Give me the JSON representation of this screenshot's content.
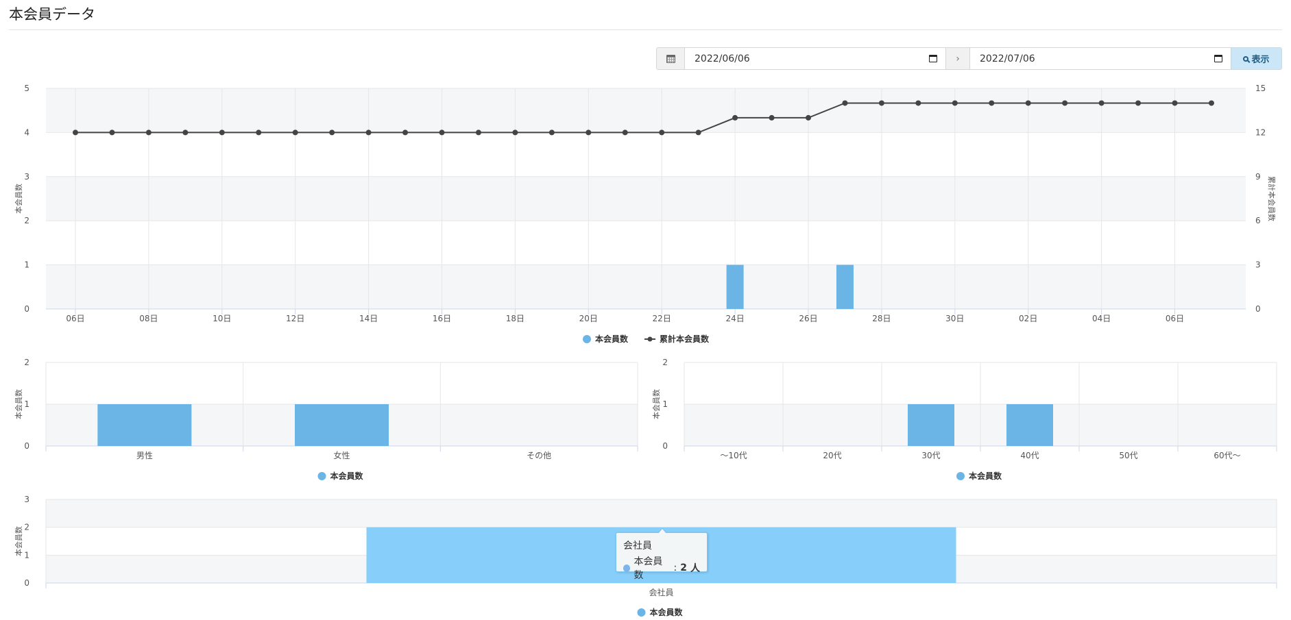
{
  "page": {
    "title": "本会員データ"
  },
  "date_range": {
    "start": "2022/06/06",
    "end": "2022/07/06",
    "separator": "›",
    "show_label": "表示"
  },
  "colors": {
    "bar": "#6ab4e6",
    "bar_light": "#87cefa",
    "line": "#444444",
    "band": "#f5f6f8"
  },
  "chart_data": [
    {
      "type": "bar+line",
      "x": [
        "06日",
        "07日",
        "08日",
        "09日",
        "10日",
        "11日",
        "12日",
        "13日",
        "14日",
        "15日",
        "16日",
        "17日",
        "18日",
        "19日",
        "20日",
        "21日",
        "22日",
        "23日",
        "24日",
        "25日",
        "26日",
        "27日",
        "28日",
        "29日",
        "30日",
        "01日",
        "02日",
        "03日",
        "04日",
        "05日",
        "06日",
        "07日"
      ],
      "x_tick_labels": [
        "06日",
        "08日",
        "10日",
        "12日",
        "14日",
        "16日",
        "18日",
        "20日",
        "22日",
        "24日",
        "26日",
        "28日",
        "30日",
        "02日",
        "04日",
        "06日"
      ],
      "series": [
        {
          "name": "本会員数",
          "type": "bar",
          "axis": "left",
          "values": [
            0,
            0,
            0,
            0,
            0,
            0,
            0,
            0,
            0,
            0,
            0,
            0,
            0,
            0,
            0,
            0,
            0,
            0,
            1,
            0,
            0,
            1,
            0,
            0,
            0,
            0,
            0,
            0,
            0,
            0,
            0,
            0
          ]
        },
        {
          "name": "累計本会員数",
          "type": "line",
          "axis": "right",
          "values": [
            12,
            12,
            12,
            12,
            12,
            12,
            12,
            12,
            12,
            12,
            12,
            12,
            12,
            12,
            12,
            12,
            12,
            12,
            13,
            13,
            13,
            14,
            14,
            14,
            14,
            14,
            14,
            14,
            14,
            14,
            14,
            14
          ]
        }
      ],
      "ylabel": "本会員数",
      "y2label": "累計本会員数",
      "ylim": [
        0,
        5
      ],
      "yticks": [
        "0",
        "1",
        "2",
        "3",
        "4",
        "5"
      ],
      "y2lim": [
        0,
        15
      ],
      "y2ticks": [
        "0",
        "3",
        "6",
        "9",
        "12",
        "15"
      ],
      "legend_position": "bottom"
    },
    {
      "type": "bar",
      "categories": [
        "男性",
        "女性",
        "その他"
      ],
      "series": [
        {
          "name": "本会員数",
          "values": [
            1,
            1,
            0
          ]
        }
      ],
      "ylabel": "本会員数",
      "ylim": [
        0,
        2
      ],
      "yticks": [
        "0",
        "1",
        "2"
      ],
      "legend_position": "bottom"
    },
    {
      "type": "bar",
      "categories": [
        "〜10代",
        "20代",
        "30代",
        "40代",
        "50代",
        "60代〜"
      ],
      "series": [
        {
          "name": "本会員数",
          "values": [
            0,
            0,
            1,
            1,
            0,
            0
          ]
        }
      ],
      "ylabel": "本会員数",
      "ylim": [
        0,
        2
      ],
      "yticks": [
        "0",
        "1",
        "2"
      ],
      "legend_position": "bottom"
    },
    {
      "type": "bar",
      "categories": [
        "会社員"
      ],
      "series": [
        {
          "name": "本会員数",
          "values": [
            2
          ]
        }
      ],
      "ylabel": "本会員数",
      "ylim": [
        0,
        3
      ],
      "yticks": [
        "0",
        "1",
        "2",
        "3"
      ],
      "legend_position": "bottom",
      "tooltip": {
        "title": "会社員",
        "series": "本会員数",
        "value": "2",
        "unit": "人"
      }
    }
  ]
}
